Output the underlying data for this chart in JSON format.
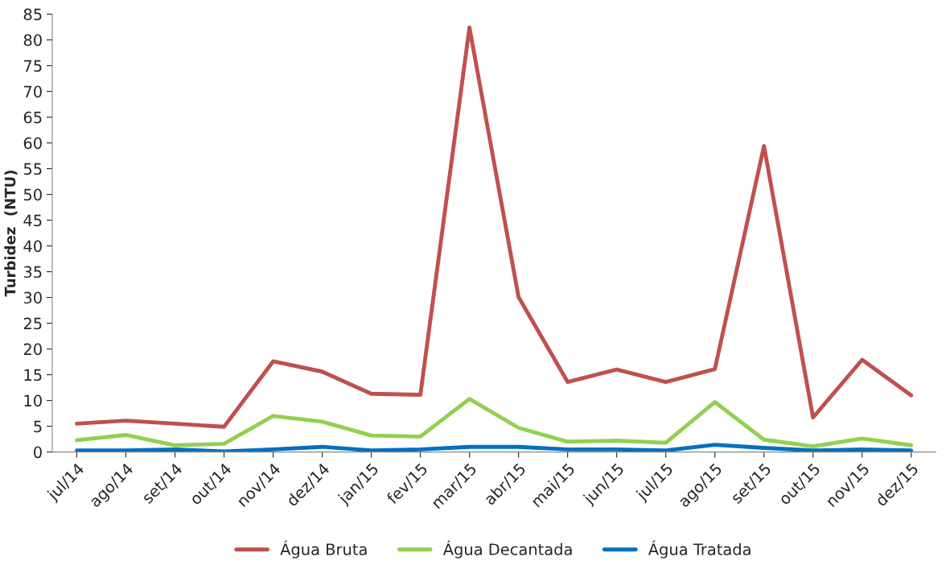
{
  "chart_data": {
    "type": "line",
    "ylabel": "Turbidez  (NTU)",
    "categories": [
      "jul/14",
      "ago/14",
      "set/14",
      "out/14",
      "nov/14",
      "dez/14",
      "jan/15",
      "fev/15",
      "mar/15",
      "abr/15",
      "mai/15",
      "jun/15",
      "jul/15",
      "ago/15",
      "set/15",
      "out/15",
      "nov/15",
      "dez/15"
    ],
    "series": [
      {
        "name": "Água Bruta",
        "color": "#c0504d",
        "values": [
          5.5,
          6.1,
          5.5,
          4.9,
          17.6,
          15.6,
          11.3,
          11.1,
          82.4,
          30.1,
          13.6,
          16.0,
          13.6,
          16.1,
          59.4,
          6.7,
          17.9,
          11.0
        ]
      },
      {
        "name": "Água Decantada",
        "color": "#92d050",
        "values": [
          2.3,
          3.3,
          1.3,
          1.6,
          7.0,
          5.9,
          3.2,
          3.0,
          10.3,
          4.7,
          2.0,
          2.2,
          1.8,
          9.7,
          2.4,
          1.1,
          2.6,
          1.3
        ]
      },
      {
        "name": "Água Tratada",
        "color": "#0070c0",
        "values": [
          0.3,
          0.3,
          0.5,
          0.1,
          0.5,
          1.0,
          0.3,
          0.5,
          1.0,
          1.0,
          0.5,
          0.5,
          0.3,
          1.4,
          0.8,
          0.3,
          0.5,
          0.3
        ]
      }
    ],
    "ylim": [
      0,
      85
    ],
    "yticks": [
      0,
      5,
      10,
      15,
      20,
      25,
      30,
      35,
      40,
      45,
      50,
      55,
      60,
      65,
      70,
      75,
      80,
      85
    ],
    "grid": false,
    "legend": "bottom",
    "marker": "none",
    "line_style": "solid"
  }
}
